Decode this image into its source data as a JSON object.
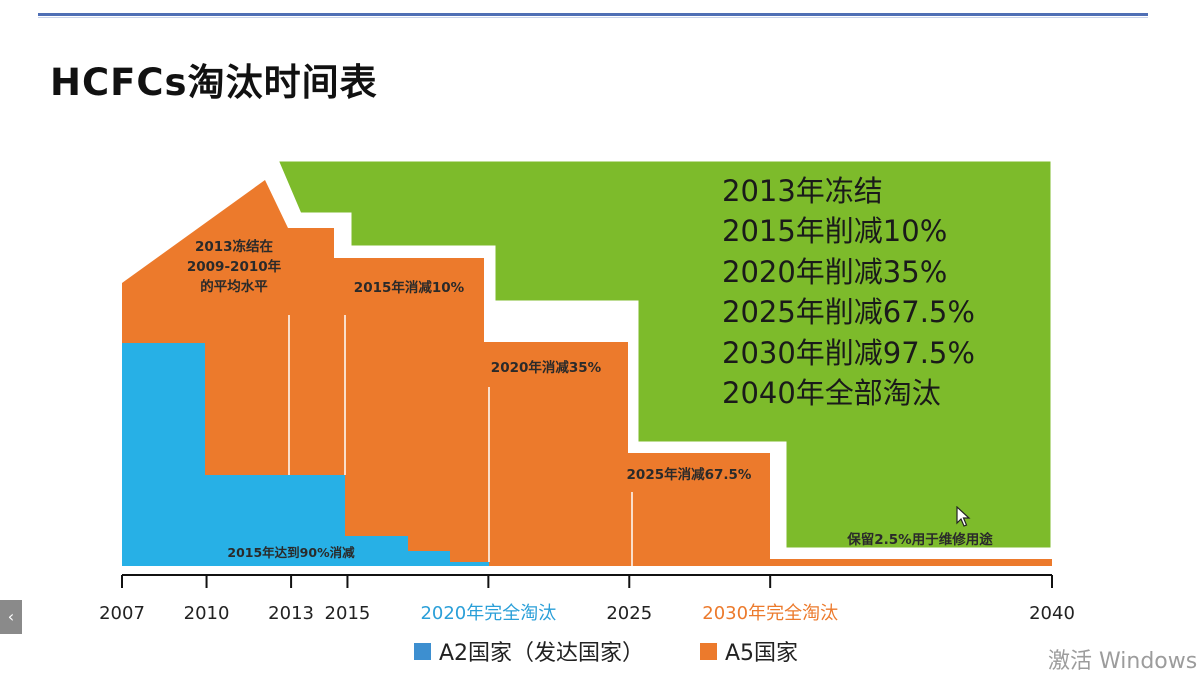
{
  "page": {
    "title": "HCFCs淘汰时间表",
    "watermark": "激活 Windows"
  },
  "colors": {
    "a2": "#27b0e6",
    "a5": "#ec7a2c",
    "green": "#7dbb2b",
    "outline": "#ffffff"
  },
  "legend": [
    {
      "label": "A2国家（发达国家）",
      "color": "#3d8fd0"
    },
    {
      "label": "A5国家",
      "color": "#ec7a2c"
    }
  ],
  "chart_data": {
    "type": "area",
    "x_ticks": [
      2007,
      2010,
      2013,
      2015,
      2025,
      2040
    ],
    "x_ticks_colored": [
      {
        "x": 2020,
        "label": "2020年完全淘汰",
        "color": "#2a9fd8"
      },
      {
        "x": 2030,
        "label": "2030年完全淘汰",
        "color": "#ec7a2c"
      }
    ],
    "xlim": [
      2007,
      2040
    ],
    "series": [
      {
        "name": "A5国家",
        "color": "#ec7a2c",
        "steps": [
          {
            "x": 2007,
            "y": 100
          },
          {
            "x": 2012.5,
            "y": 140
          },
          {
            "x": 2013,
            "y": 128
          },
          {
            "x": 2015,
            "y": 115
          },
          {
            "x": 2020,
            "y": 103.5
          },
          {
            "x": 2025,
            "y": 74.75
          },
          {
            "x": 2030,
            "y": 37.375
          },
          {
            "x": 2040,
            "y": 2.875
          }
        ]
      },
      {
        "name": "A2国家（发达国家）",
        "color": "#27b0e6",
        "steps": [
          {
            "x": 2007,
            "y": 85
          },
          {
            "x": 2010,
            "y": 35
          },
          {
            "x": 2015,
            "y": 10
          },
          {
            "x": 2017.3,
            "y": 5
          },
          {
            "x": 2018.8,
            "y": 1.5
          },
          {
            "x": 2020,
            "y": 0
          }
        ]
      }
    ],
    "annotations": [
      {
        "text_lines": [
          "2013冻结在",
          "2009-2010年",
          "的平均水平"
        ],
        "x": 2011.2
      },
      {
        "text_lines": [
          "2015年消减10%"
        ],
        "x": 2017.5
      },
      {
        "text_lines": [
          "2020年消减35%"
        ],
        "x": 2022.5
      },
      {
        "text_lines": [
          "2025年消减67.5%"
        ],
        "x": 2028.2
      },
      {
        "text_lines": [
          "2015年达到90%消减"
        ],
        "x": 2014.5
      },
      {
        "text_lines": [
          "保留2.5%用于维修用途"
        ],
        "x": 2037
      }
    ],
    "summary_lines": [
      "2013年冻结",
      "2015年削减10%",
      "2020年削减35%",
      "2025年削减67.5%",
      "2030年削减97.5%",
      "2040年全部淘汰"
    ]
  }
}
